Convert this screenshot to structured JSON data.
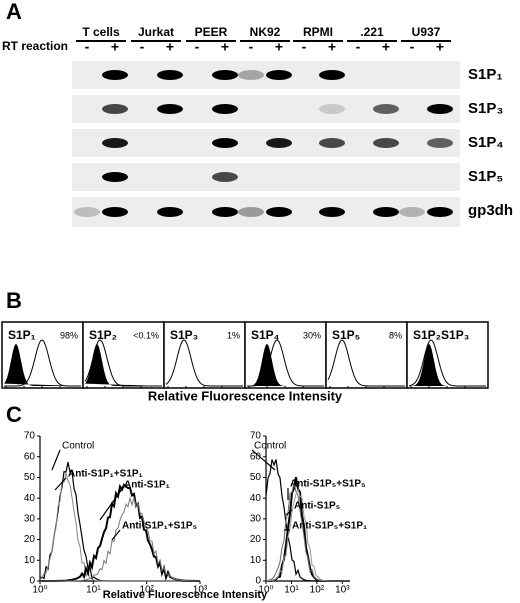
{
  "panel_a": {
    "label": "A",
    "row_label": "RT reaction",
    "columns": [
      {
        "name": "T cells",
        "signs": [
          "-",
          "+"
        ]
      },
      {
        "name": "Jurkat",
        "signs": [
          "-",
          "+"
        ]
      },
      {
        "name": "PEER",
        "signs": [
          "-",
          "+"
        ]
      },
      {
        "name": "NK92",
        "signs": [
          "-",
          "+"
        ]
      },
      {
        "name": "RPMI",
        "signs": [
          "-",
          "+"
        ]
      },
      {
        "name": ".221",
        "signs": [
          "-",
          "+"
        ]
      },
      {
        "name": "U937",
        "signs": [
          "-",
          "+"
        ]
      }
    ],
    "genes": [
      "S1P₁",
      "S1P₃",
      "S1P₄",
      "S1P₅",
      "gp3dh"
    ]
  },
  "panel_b": {
    "label": "B",
    "histograms": [
      {
        "title": "S1P₁",
        "percent": "98%"
      },
      {
        "title": "S1P₂",
        "percent": "<0.1%"
      },
      {
        "title": "S1P₃",
        "percent": "1%"
      },
      {
        "title": "S1P₄",
        "percent": "30%"
      },
      {
        "title": "S1P₅",
        "percent": "8%"
      },
      {
        "title": "S1P₂S1P₃",
        "percent": null
      }
    ],
    "x_label": "Relative Fluorescence Intensity"
  },
  "panel_c": {
    "label": "C",
    "plots": [
      {
        "yticks": [
          "0",
          "10",
          "20",
          "30",
          "40",
          "50",
          "60",
          "70"
        ],
        "xticks": [
          "10⁰",
          "10¹",
          "10²",
          "10³"
        ],
        "annotations": [
          "Control",
          "Anti-S1P₁+S1P₁",
          "Anti-S1P₁",
          "Anti-S1P₁+S1P₅"
        ]
      },
      {
        "yticks": [
          "0",
          "10",
          "20",
          "30",
          "40",
          "50",
          "60",
          "70"
        ],
        "xticks": [
          "10⁰",
          "10¹",
          "10²",
          "10³"
        ],
        "annotations": [
          "Control",
          "Anti-S1P₅+S1P₅",
          "Anti-S1P₅",
          "Anti-S1P₅+S1P₁"
        ]
      }
    ],
    "x_label": "Relative Fluorescence Intensity"
  }
}
